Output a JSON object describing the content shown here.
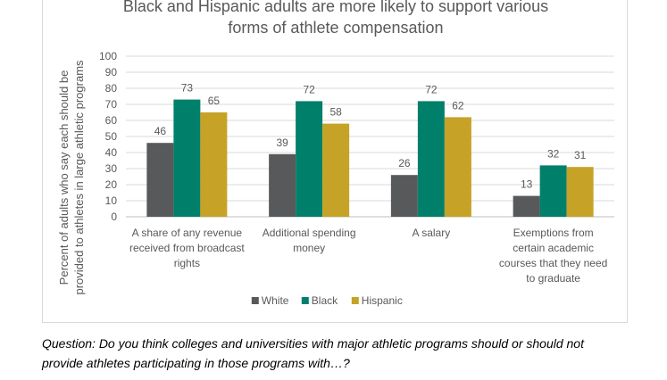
{
  "chart_data": {
    "type": "bar",
    "title_lines": [
      "Black and Hispanic adults are more likely to support various",
      "forms of athlete compensation"
    ],
    "ylabel_lines": [
      "Percent of adults who say each should be",
      "provided to athletes in large athletic programs"
    ],
    "xlabel": "",
    "ylim": [
      0,
      100
    ],
    "yticks": [
      0,
      10,
      20,
      30,
      40,
      50,
      60,
      70,
      80,
      90,
      100
    ],
    "grid": true,
    "legend_position": "bottom",
    "categories": [
      [
        "A share of any revenue",
        "received from broadcast",
        "rights"
      ],
      [
        "Additional spending",
        "money"
      ],
      [
        "A salary"
      ],
      [
        "Exemptions from",
        "certain academic",
        "courses that they need",
        "to graduate"
      ]
    ],
    "series": [
      {
        "name": "White",
        "color": "#58595b",
        "values": [
          46,
          39,
          26,
          13
        ]
      },
      {
        "name": "Black",
        "color": "#00806a",
        "values": [
          73,
          72,
          72,
          32
        ]
      },
      {
        "name": "Hispanic",
        "color": "#c6a227",
        "values": [
          65,
          58,
          62,
          31
        ]
      }
    ]
  },
  "footnote": {
    "lines": [
      "Question: Do you think colleges and universities with major athletic programs should or should not",
      "provide athletes participating in those programs with…?"
    ]
  }
}
